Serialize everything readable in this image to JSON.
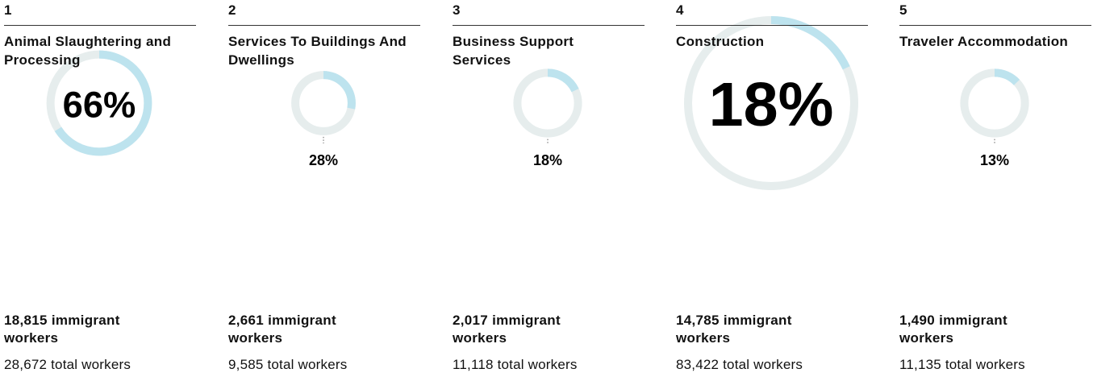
{
  "items": [
    {
      "rank": 1,
      "name": "Animal Slaughtering and Processing",
      "percent": 66,
      "percent_label": "66%",
      "immigrant_label": "18,815 immigrant workers",
      "total_workers": 28672,
      "total_label": "28,672 total workers"
    },
    {
      "rank": 2,
      "name": "Services To Buildings And Dwellings",
      "percent": 28,
      "percent_label": "28%",
      "immigrant_label": "2,661 immigrant workers",
      "total_workers": 9585,
      "total_label": "9,585 total workers"
    },
    {
      "rank": 3,
      "name": "Business Support Services",
      "percent": 18,
      "percent_label": "18%",
      "immigrant_label": "2,017 immigrant workers",
      "total_workers": 11118,
      "total_label": "11,118 total workers"
    },
    {
      "rank": 4,
      "name": "Construction",
      "percent": 18,
      "percent_label": "18%",
      "immigrant_label": "14,785 immigrant workers",
      "total_workers": 83422,
      "total_label": "83,422 total workers"
    },
    {
      "rank": 5,
      "name": "Traveler Accommodation",
      "percent": 13,
      "percent_label": "13%",
      "immigrant_label": "1,490 immigrant workers",
      "total_workers": 11135,
      "total_label": "11,135 total workers"
    }
  ]
}
